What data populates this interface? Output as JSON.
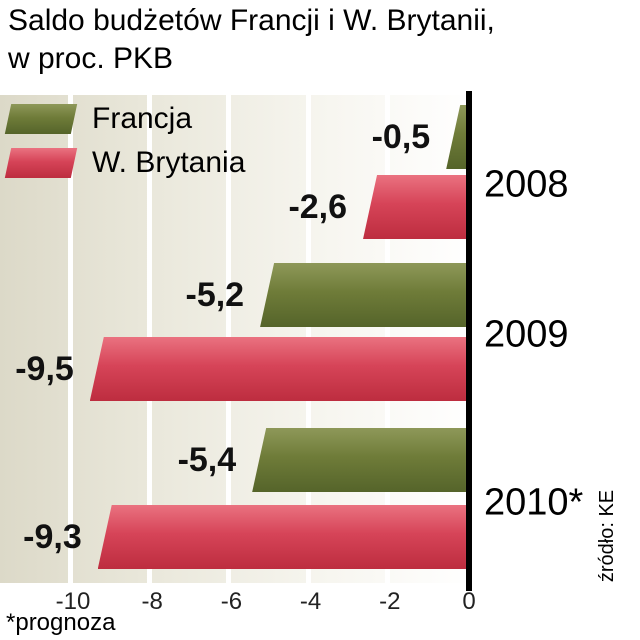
{
  "title": {
    "line1": "Saldo budżetów Francji i W. Brytanii,",
    "line2": "w proc. PKB"
  },
  "legend": {
    "items": [
      {
        "label": "Francja",
        "color": "#6f7c39",
        "color_light": "#8e9859",
        "color_dark": "#55642a"
      },
      {
        "label": "W. Brytania",
        "color": "#d64458",
        "color_light": "#ea7280",
        "color_dark": "#bd2d3f"
      }
    ]
  },
  "footnote": "*prognoza",
  "source": "źródło: KE",
  "chart_data": {
    "type": "bar",
    "orientation": "horizontal",
    "title": "Saldo budżetów Francji i W. Brytanii, w proc. PKB",
    "categories": [
      "2008",
      "2009",
      "2010*"
    ],
    "series": [
      {
        "name": "Francja",
        "color": "#6f7c39",
        "color_light": "#8e9859",
        "color_dark": "#55642a",
        "values": [
          -0.5,
          -5.2,
          -5.4
        ],
        "labels": [
          "-0,5",
          "-5,2",
          "-5,4"
        ]
      },
      {
        "name": "W. Brytania",
        "color": "#d64458",
        "color_light": "#ea7280",
        "color_dark": "#bd2d3f",
        "values": [
          -2.6,
          -9.5,
          -9.3
        ],
        "labels": [
          "-2,6",
          "-9,5",
          "-9,3"
        ]
      }
    ],
    "xlim": [
      -10,
      0
    ],
    "x_ticks": [
      -10,
      -8,
      -6,
      -4,
      -2,
      0
    ],
    "x_tick_labels": [
      "-10",
      "-8",
      "-6",
      "-4",
      "-2",
      "0"
    ],
    "grid": true,
    "legend_position": "top-left",
    "footnote": "*prognoza",
    "source": "źródło: KE"
  }
}
